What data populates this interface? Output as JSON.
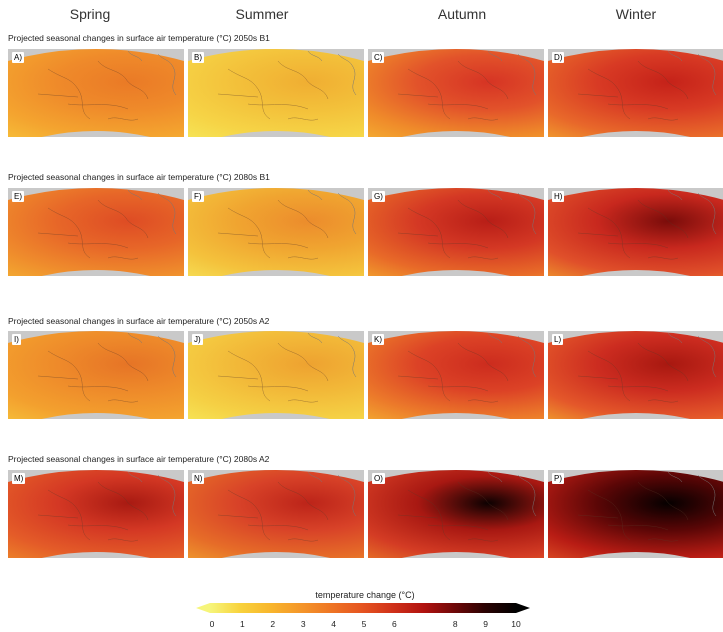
{
  "seasons": [
    "Spring",
    "Summer",
    "Autumn",
    "Winter"
  ],
  "rows": [
    {
      "title": "Projected seasonal changes in surface air temperature (°C) 2050s B1",
      "panels": [
        {
          "label": "A)",
          "levels": [
            "#f7c23a",
            "#f4a42f",
            "#ef8a2a",
            "#ea7a26"
          ]
        },
        {
          "label": "B)",
          "levels": [
            "#f6e85a",
            "#f6d446",
            "#f3c03a",
            "#f0ae32"
          ]
        },
        {
          "label": "C)",
          "levels": [
            "#f5b232",
            "#ef8a2a",
            "#e2522a",
            "#d63424"
          ]
        },
        {
          "label": "D)",
          "levels": [
            "#f2a42e",
            "#e8682a",
            "#d83a24",
            "#c52219"
          ]
        }
      ]
    },
    {
      "title": "Projected seasonal changes in surface air temperature (°C) 2080s B1",
      "panels": [
        {
          "label": "E)",
          "levels": [
            "#f4b032",
            "#ef8c2c",
            "#e76628",
            "#de4c24"
          ]
        },
        {
          "label": "F)",
          "levels": [
            "#f6e258",
            "#f4c23c",
            "#f0a430",
            "#ec8c2c"
          ]
        },
        {
          "label": "G)",
          "levels": [
            "#f3a82e",
            "#e86a28",
            "#d43824",
            "#b81e17"
          ]
        },
        {
          "label": "H)",
          "levels": [
            "#ef9a2c",
            "#e0502a",
            "#c8281e",
            "#7a0c0a"
          ]
        }
      ]
    },
    {
      "title": "Projected seasonal changes in surface air temperature (°C) 2050s A2",
      "panels": [
        {
          "label": "I)",
          "levels": [
            "#f6c23a",
            "#f3a02e",
            "#ee8a2a",
            "#e67426"
          ]
        },
        {
          "label": "J)",
          "levels": [
            "#f6e85a",
            "#f5d044",
            "#f2b838",
            "#eea230"
          ]
        },
        {
          "label": "K)",
          "levels": [
            "#f4b032",
            "#ec7a2a",
            "#dc4226",
            "#cc2c1e"
          ]
        },
        {
          "label": "L)",
          "levels": [
            "#f1a42e",
            "#e4582a",
            "#cc2c20",
            "#a81810"
          ]
        }
      ]
    },
    {
      "title": "Projected seasonal changes in surface air temperature (°C) 2080s A2",
      "panels": [
        {
          "label": "M)",
          "levels": [
            "#ee8a2a",
            "#e45c28",
            "#d43824",
            "#a81a12"
          ]
        },
        {
          "label": "N)",
          "levels": [
            "#f0a02e",
            "#e66c28",
            "#d84228",
            "#bc2419"
          ]
        },
        {
          "label": "O)",
          "levels": [
            "#ea7a28",
            "#d43c24",
            "#a81812",
            "#0c0101"
          ]
        },
        {
          "label": "P)",
          "levels": [
            "#e05226",
            "#b81c14",
            "#5a0606",
            "#050000"
          ]
        }
      ]
    }
  ],
  "legend": {
    "title": "temperature change (°C)",
    "ticks": [
      "0",
      "1",
      "2",
      "3",
      "4",
      "5",
      "6",
      "",
      "8",
      "9",
      "10"
    ]
  }
}
